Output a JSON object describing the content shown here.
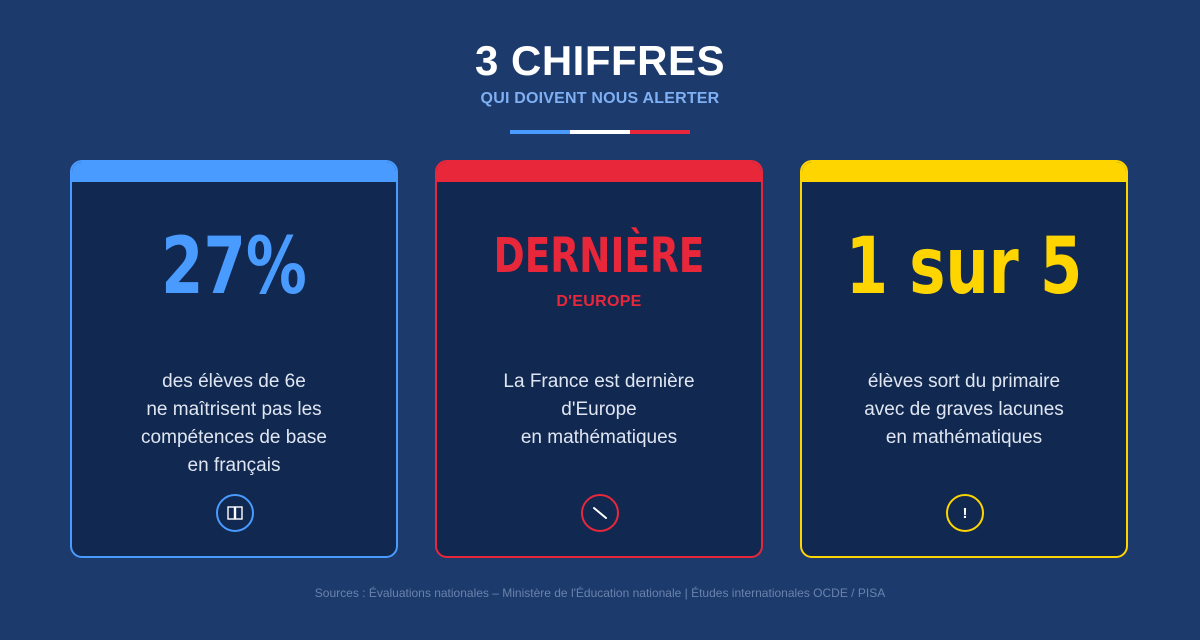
{
  "header": {
    "title": "3 CHIFFRES",
    "subtitle": "QUI DOIVENT NOUS ALERTER"
  },
  "colors": {
    "background": "#1d3a6d",
    "blue": "#4a9bff",
    "red": "#e8283a",
    "yellow": "#ffd500",
    "white": "#ffffff"
  },
  "cards": [
    {
      "big": "27%",
      "big_sub": "",
      "desc": [
        "des élèves de 6e",
        "ne maîtrisent pas les",
        "compétences de base",
        "en français"
      ],
      "icon": "book-icon"
    },
    {
      "big": "DERNIÈRE",
      "big_sub": "D'EUROPE",
      "desc": [
        "La France est dernière",
        "d'Europe",
        "en mathématiques"
      ],
      "icon": "trend-down-icon"
    },
    {
      "big": "1 sur 5",
      "big_sub": "",
      "desc": [
        "élèves sort du primaire",
        "avec de graves lacunes",
        "en mathématiques"
      ],
      "icon": "alert-icon",
      "icon_text": "!"
    }
  ],
  "source": "Sources : Évaluations nationales – Ministère de l'Éducation nationale | Études internationales OCDE / PISA"
}
